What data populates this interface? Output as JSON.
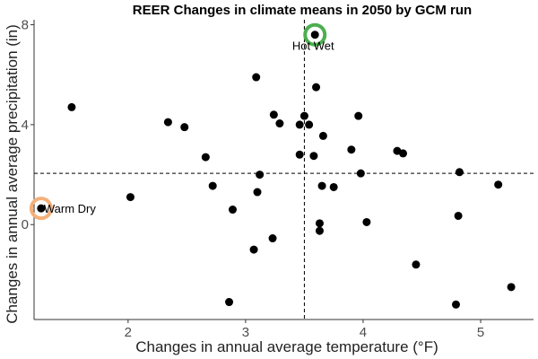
{
  "chart_data": {
    "type": "scatter",
    "title": "REER Changes in climate means in 2050 by GCM run",
    "xlabel": "Changes in annual average temperature (°F)",
    "ylabel": "Changes in annual average precipitation (in)",
    "xlim": [
      1.2,
      5.45
    ],
    "ylim": [
      -3.8,
      8.2
    ],
    "x_ticks": [
      2,
      3,
      4,
      5
    ],
    "y_ticks": [
      0,
      4,
      8
    ],
    "grid": false,
    "reference_lines": {
      "x": 3.5,
      "y": 2.05
    },
    "marker_color": "#000000",
    "points": [
      {
        "x": 1.52,
        "y": 4.7
      },
      {
        "x": 2.02,
        "y": 1.1
      },
      {
        "x": 2.34,
        "y": 4.1
      },
      {
        "x": 2.48,
        "y": 3.9
      },
      {
        "x": 2.66,
        "y": 2.7
      },
      {
        "x": 2.72,
        "y": 1.55
      },
      {
        "x": 2.86,
        "y": -3.1
      },
      {
        "x": 2.89,
        "y": 0.6
      },
      {
        "x": 3.07,
        "y": -1.0
      },
      {
        "x": 3.09,
        "y": 5.9
      },
      {
        "x": 3.1,
        "y": 1.3
      },
      {
        "x": 3.12,
        "y": 2.0
      },
      {
        "x": 3.23,
        "y": -0.55
      },
      {
        "x": 3.24,
        "y": 4.4
      },
      {
        "x": 3.29,
        "y": 4.05
      },
      {
        "x": 3.46,
        "y": 2.8
      },
      {
        "x": 3.46,
        "y": 4.0
      },
      {
        "x": 3.5,
        "y": 4.35
      },
      {
        "x": 3.54,
        "y": 4.0
      },
      {
        "x": 3.58,
        "y": 2.75
      },
      {
        "x": 3.6,
        "y": 5.5
      },
      {
        "x": 3.63,
        "y": 0.05
      },
      {
        "x": 3.63,
        "y": -0.25
      },
      {
        "x": 3.65,
        "y": 1.55
      },
      {
        "x": 3.66,
        "y": 3.55
      },
      {
        "x": 3.75,
        "y": 1.5
      },
      {
        "x": 3.9,
        "y": 3.0
      },
      {
        "x": 3.96,
        "y": 4.35
      },
      {
        "x": 3.98,
        "y": 2.05
      },
      {
        "x": 4.03,
        "y": 0.1
      },
      {
        "x": 4.29,
        "y": 2.95
      },
      {
        "x": 4.34,
        "y": 2.85
      },
      {
        "x": 4.45,
        "y": -1.6
      },
      {
        "x": 4.79,
        "y": -3.2
      },
      {
        "x": 4.81,
        "y": 0.35
      },
      {
        "x": 4.82,
        "y": 2.1
      },
      {
        "x": 5.15,
        "y": 1.6
      },
      {
        "x": 5.26,
        "y": -2.5
      }
    ],
    "highlights": [
      {
        "label": "Hot Wet",
        "x": 3.59,
        "y": 7.6,
        "color": "#4CAF50"
      },
      {
        "label": "Warm Dry",
        "x": 1.26,
        "y": 0.65,
        "color": "#F4B07A"
      }
    ]
  }
}
